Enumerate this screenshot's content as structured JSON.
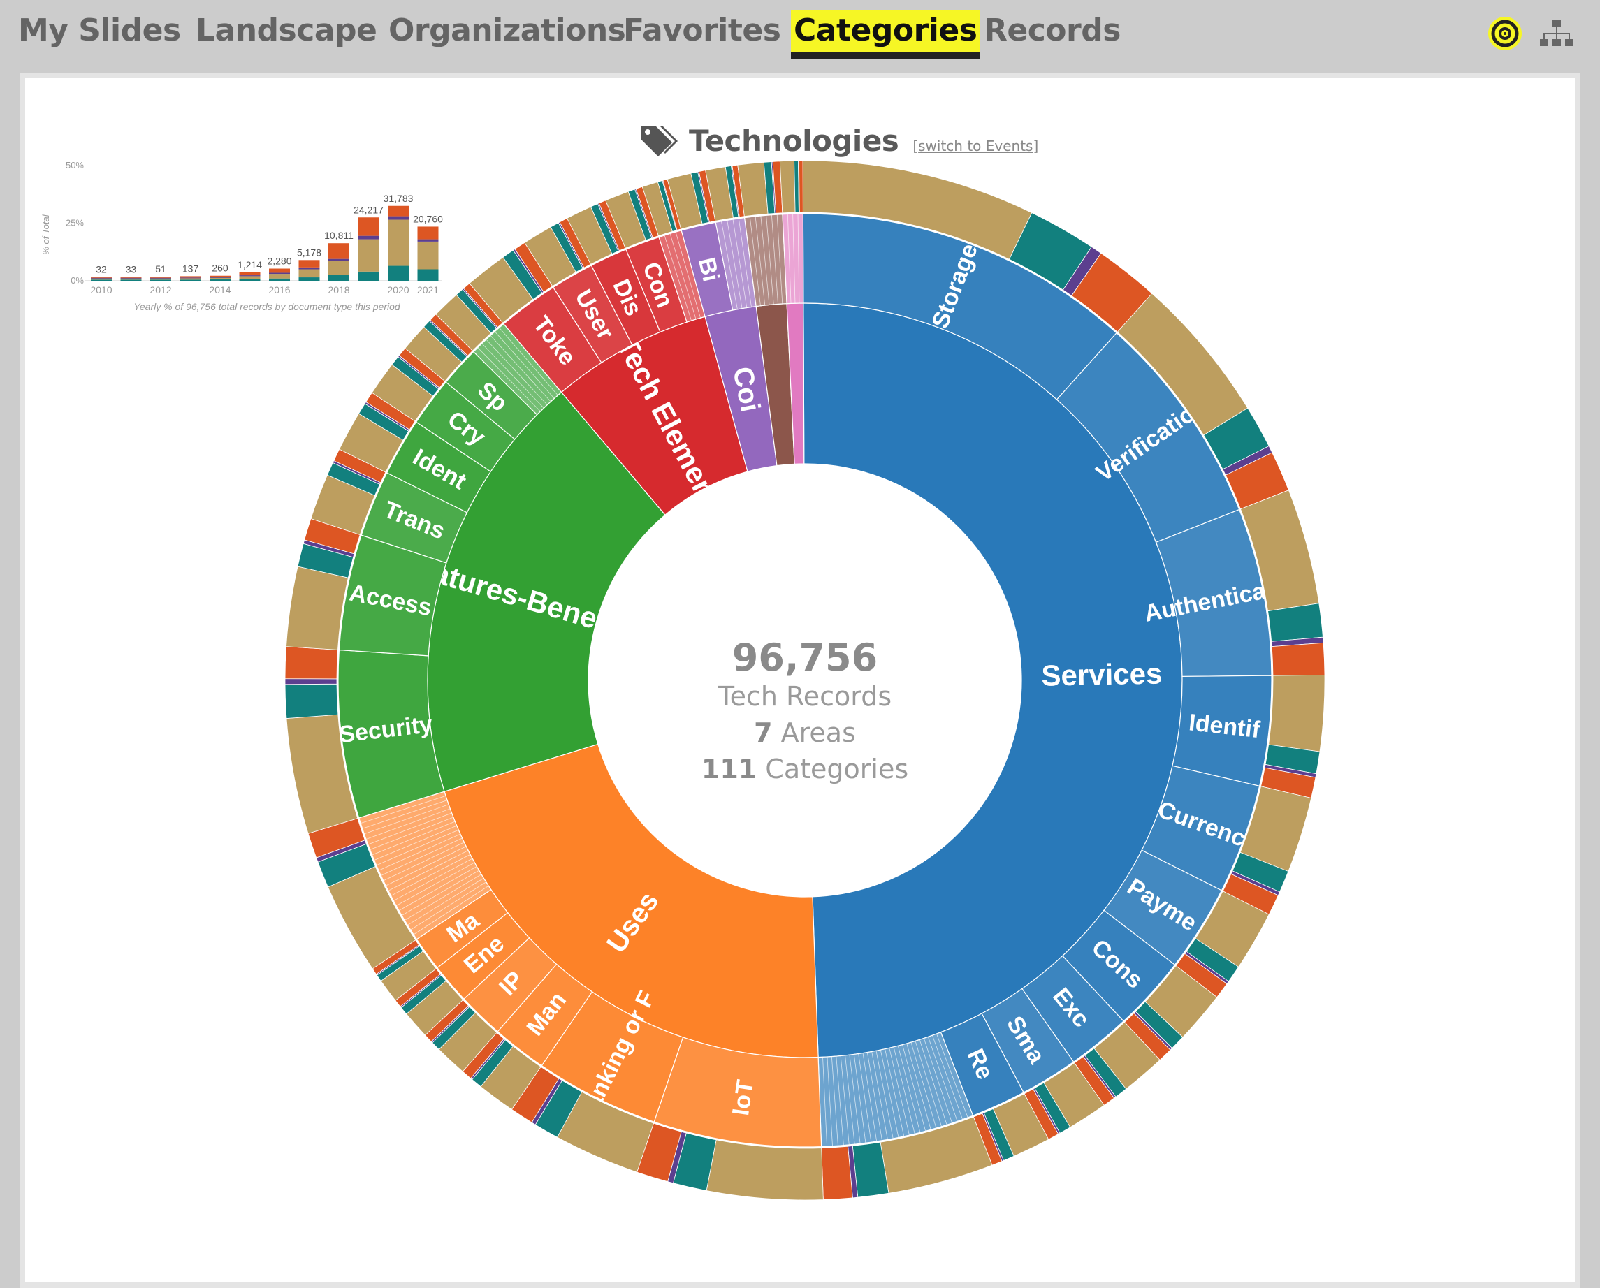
{
  "nav": {
    "tabs": [
      {
        "label": "My Slides",
        "active": false
      },
      {
        "label": "Landscape",
        "active": false
      },
      {
        "label": "Organizations",
        "active": false
      },
      {
        "label": "Favorites",
        "active": false
      },
      {
        "label": "Categories",
        "active": true
      },
      {
        "label": "Records",
        "active": false
      }
    ],
    "icons": [
      "target-icon",
      "sitemap-icon"
    ],
    "active_color": "#f6f625"
  },
  "header": {
    "title": "Technologies",
    "switch_link": "switch to Events",
    "icon": "tags-icon"
  },
  "center": {
    "total": "96,756",
    "total_label": "Tech Records",
    "areas_count": "7",
    "areas_label": "Areas",
    "categories_count": "111",
    "categories_label": "Categories"
  },
  "chart_data": [
    {
      "type": "sunburst",
      "inner_ring": [
        {
          "label": "Services",
          "share": 0.495,
          "color": "#2979b9"
        },
        {
          "label": "Uses",
          "share": 0.208,
          "color": "#fd8228"
        },
        {
          "label": "Features-Benefits",
          "share": 0.186,
          "color": "#33a033"
        },
        {
          "label": "Tech Elemen",
          "share": 0.069,
          "color": "#d62a2e"
        },
        {
          "label": "Coi",
          "share": 0.022,
          "color": "#9368be"
        },
        {
          "label": "",
          "share": 0.013,
          "color": "#8c564b"
        },
        {
          "label": "",
          "share": 0.007,
          "color": "#e17ac1"
        }
      ],
      "middle_ring": [
        {
          "label": "Storage",
          "parent": "Services",
          "share": 0.117
        },
        {
          "label": "Verification",
          "parent": "Services",
          "share": 0.074
        },
        {
          "label": "Authenticatio",
          "parent": "Services",
          "share": 0.058
        },
        {
          "label": "Identif",
          "parent": "Services",
          "share": 0.038
        },
        {
          "label": "Currenc",
          "parent": "Services",
          "share": 0.038
        },
        {
          "label": "Payme",
          "parent": "Services",
          "share": 0.03
        },
        {
          "label": "Cons",
          "parent": "Services",
          "share": 0.026
        },
        {
          "label": "Exc",
          "parent": "Services",
          "share": 0.022
        },
        {
          "label": "Sma",
          "parent": "Services",
          "share": 0.02
        },
        {
          "label": "Re",
          "parent": "Services",
          "share": 0.019
        },
        {
          "label": "",
          "parent": "Services",
          "share": 0.053
        },
        {
          "label": "IoT",
          "parent": "Uses",
          "share": 0.058
        },
        {
          "label": "Banking or F",
          "parent": "Uses",
          "share": 0.043
        },
        {
          "label": "Man",
          "parent": "Uses",
          "share": 0.019
        },
        {
          "label": "IP",
          "parent": "Uses",
          "share": 0.016
        },
        {
          "label": "Ene",
          "parent": "Uses",
          "share": 0.014
        },
        {
          "label": "Ma",
          "parent": "Uses",
          "share": 0.012
        },
        {
          "label": "",
          "parent": "Uses",
          "share": 0.046
        },
        {
          "label": "Security",
          "parent": "Features-Benefits",
          "share": 0.058
        },
        {
          "label": "Access",
          "parent": "Features-Benefits",
          "share": 0.04
        },
        {
          "label": "Trans",
          "parent": "Features-Benefits",
          "share": 0.023
        },
        {
          "label": "Ident",
          "parent": "Features-Benefits",
          "share": 0.02
        },
        {
          "label": "Cry",
          "parent": "Features-Benefits",
          "share": 0.017
        },
        {
          "label": "Sp",
          "parent": "Features-Benefits",
          "share": 0.014
        },
        {
          "label": "",
          "parent": "Features-Benefits",
          "share": 0.014
        },
        {
          "label": "Toke",
          "parent": "Tech Elemen",
          "share": 0.021
        },
        {
          "label": "User",
          "parent": "Tech Elemen",
          "share": 0.015
        },
        {
          "label": "Dis",
          "parent": "Tech Elemen",
          "share": 0.013
        },
        {
          "label": "Con",
          "parent": "Tech Elemen",
          "share": 0.012
        },
        {
          "label": "",
          "parent": "Tech Elemen",
          "share": 0.008
        },
        {
          "label": "Bi",
          "parent": "Coi",
          "share": 0.012
        },
        {
          "label": "",
          "parent": "Coi",
          "share": 0.01
        },
        {
          "label": "",
          "parent": "",
          "share": 0.013
        },
        {
          "label": "",
          "parent": "",
          "share": 0.007
        }
      ],
      "outer_ring_colors": {
        "tan": "#bd9e5f",
        "teal": "#12807e",
        "orange": "#dd5623",
        "purple": "#5c3f8f"
      }
    },
    {
      "type": "bar",
      "ylabel": "% of Total",
      "yticks": [
        "0%",
        "25%",
        "50%"
      ],
      "ylim": [
        0,
        50
      ],
      "categories": [
        "2010",
        "2011",
        "2012",
        "2013",
        "2014",
        "2015",
        "2016",
        "2017",
        "2018",
        "2019",
        "2020",
        "2021"
      ],
      "xtick_labels": [
        "2010",
        "2012",
        "2014",
        "2016",
        "2018",
        "2020",
        "2021"
      ],
      "totals": [
        "32",
        "33",
        "51",
        "137",
        "260",
        "1,214",
        "2,280",
        "5,178",
        "10,811",
        "24,217",
        "31,783",
        "20,760"
      ],
      "series": [
        {
          "color": "#12807e",
          "values": [
            0.5,
            0.5,
            0.5,
            0.5,
            0.6,
            0.8,
            1.0,
            1.5,
            2.5,
            4.0,
            6.5,
            5.0
          ]
        },
        {
          "color": "#bd9e5f",
          "values": [
            0.6,
            0.6,
            0.6,
            0.7,
            0.8,
            1.2,
            2.0,
            3.5,
            6.0,
            14.0,
            20.0,
            12.0
          ]
        },
        {
          "color": "#5c3f8f",
          "values": [
            0.2,
            0.2,
            0.2,
            0.2,
            0.2,
            0.4,
            0.5,
            0.8,
            1.0,
            1.5,
            1.5,
            1.0
          ]
        },
        {
          "color": "#dd5623",
          "values": [
            0.4,
            0.4,
            0.5,
            0.6,
            0.6,
            1.3,
            1.8,
            3.2,
            6.8,
            8.0,
            4.5,
            5.5
          ]
        }
      ],
      "caption": "Yearly % of 96,756 total records by document type this period"
    }
  ]
}
